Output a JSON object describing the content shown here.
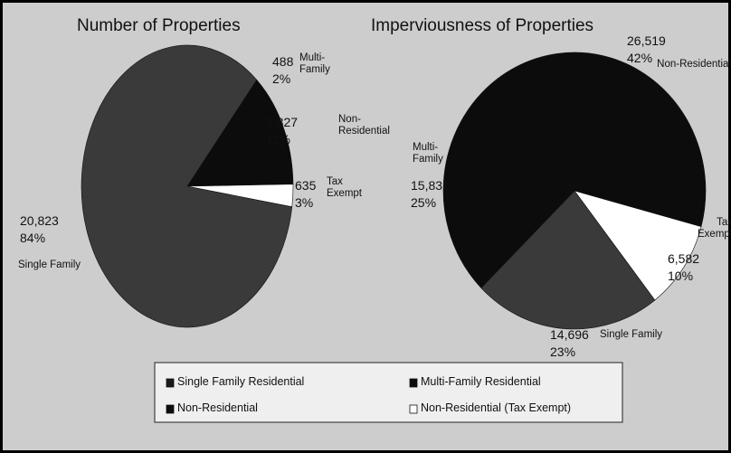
{
  "chart_data": [
    {
      "type": "pie",
      "title": "Number of Properties",
      "categories": [
        "Multi-Family",
        "Non-Residential",
        "Tax Exempt",
        "Single Family"
      ],
      "values": [
        488,
        2827,
        635,
        20823
      ],
      "value_labels": [
        "488",
        "2,827",
        "635",
        "20,823"
      ],
      "percent_labels": [
        "2%",
        "11%",
        "3%",
        "84%"
      ],
      "colors": [
        "#0c0c0c",
        "#0c0c0c",
        "#ffffff",
        "#3a3a3a"
      ]
    },
    {
      "type": "pie",
      "title": "Imperviousness of Properties",
      "categories": [
        "Tax Exempt",
        "Single Family",
        "Multi-Family",
        "Non-Residential"
      ],
      "values": [
        6582,
        14696,
        15831,
        26519
      ],
      "value_labels": [
        "6,582",
        "14,696",
        "15,831",
        "26,519"
      ],
      "percent_labels": [
        "10%",
        "23%",
        "25%",
        "42%"
      ],
      "colors": [
        "#ffffff",
        "#3a3a3a",
        "#0c0c0c",
        "#0c0c0c"
      ]
    }
  ],
  "legend": [
    {
      "name": "Single Family Residential",
      "color": "#1a1a1a"
    },
    {
      "name": "Multi-Family Residential",
      "color": "#0c0c0c"
    },
    {
      "name": "Non-Residential",
      "color": "#0c0c0c"
    },
    {
      "name": "Non-Residential (Tax Exempt)",
      "color": "#ffffff"
    }
  ]
}
